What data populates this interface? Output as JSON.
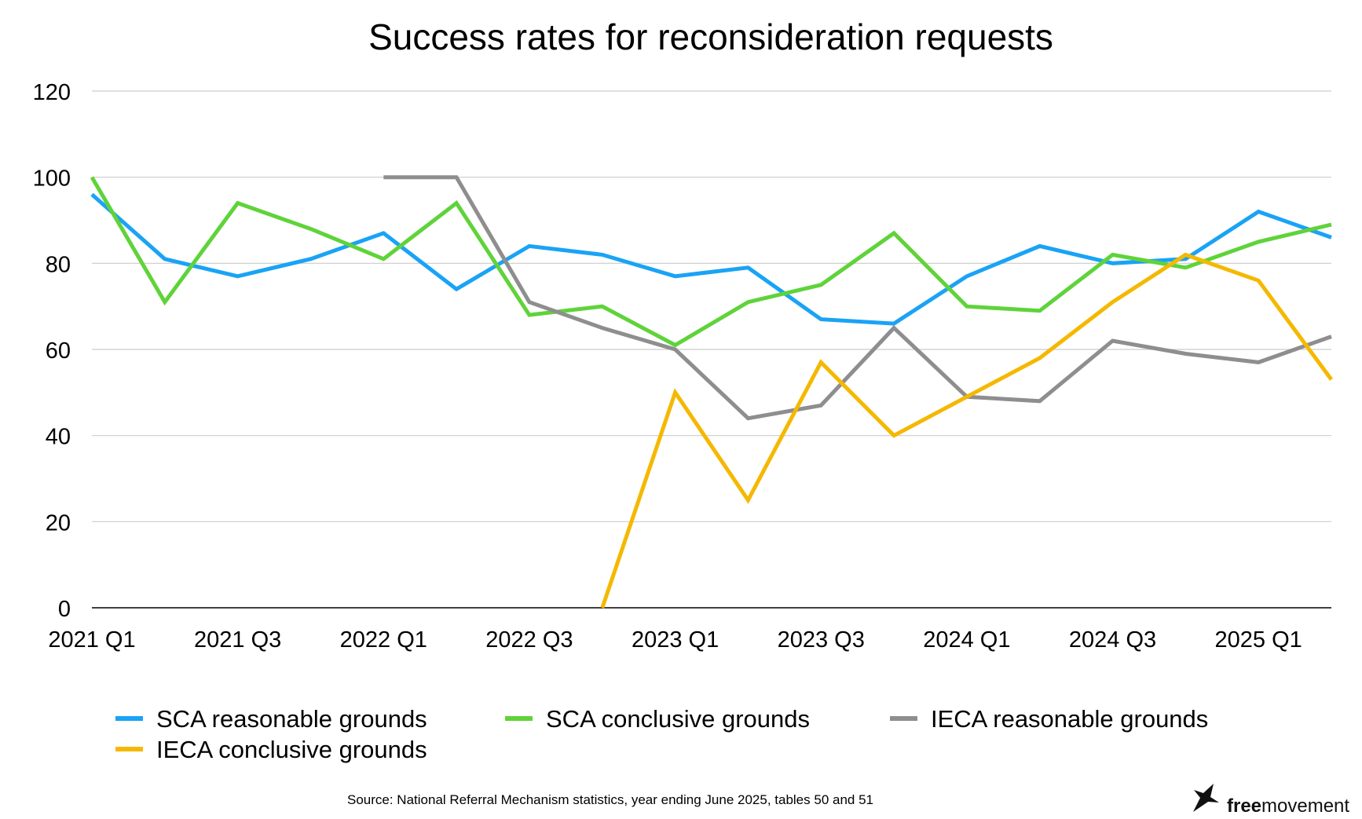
{
  "chart_data": {
    "type": "line",
    "title": "Success rates for reconsideration requests",
    "xlabel": "",
    "ylabel": "",
    "categories": [
      "2021 Q1",
      "2021 Q2",
      "2021 Q3",
      "2021 Q4",
      "2022 Q1",
      "2022 Q2",
      "2022 Q3",
      "2022 Q4",
      "2023 Q1",
      "2023 Q2",
      "2023 Q3",
      "2023 Q4",
      "2024 Q1",
      "2024 Q2",
      "2024 Q3",
      "2024 Q4",
      "2025 Q1",
      "2025 Q2"
    ],
    "x_tick_labels": [
      "2021 Q1",
      "2021 Q3",
      "2022 Q1",
      "2022 Q3",
      "2023 Q1",
      "2023 Q3",
      "2024 Q1",
      "2024 Q3",
      "2025 Q1"
    ],
    "y_ticks": [
      0,
      20,
      40,
      60,
      80,
      100,
      120
    ],
    "ylim": [
      0,
      120
    ],
    "grid": true,
    "legend_position": "bottom",
    "series": [
      {
        "name": "SCA reasonable grounds",
        "color": "#1aa3f5",
        "values": [
          96,
          81,
          77,
          81,
          87,
          74,
          84,
          82,
          77,
          79,
          67,
          66,
          77,
          84,
          80,
          81,
          92,
          86
        ]
      },
      {
        "name": "SCA conclusive grounds",
        "color": "#5fd33a",
        "values": [
          100,
          71,
          94,
          88,
          81,
          94,
          68,
          70,
          61,
          71,
          75,
          87,
          70,
          69,
          82,
          79,
          85,
          89
        ]
      },
      {
        "name": "IECA reasonable grounds",
        "color": "#8e8e8e",
        "values": [
          null,
          null,
          null,
          null,
          100,
          100,
          71,
          65,
          60,
          44,
          47,
          65,
          49,
          48,
          62,
          59,
          57,
          63
        ]
      },
      {
        "name": "IECA conclusive grounds",
        "color": "#f5b800",
        "values": [
          null,
          null,
          null,
          null,
          null,
          null,
          null,
          0,
          50,
          25,
          57,
          40,
          49,
          58,
          71,
          82,
          76,
          53
        ]
      }
    ]
  },
  "source_note": "Source: National Referral Mechanism statistics, year ending June 2025, tables 50 and 51",
  "brand": {
    "part1": "free",
    "part2": "movement",
    "icon": "bird-icon"
  }
}
